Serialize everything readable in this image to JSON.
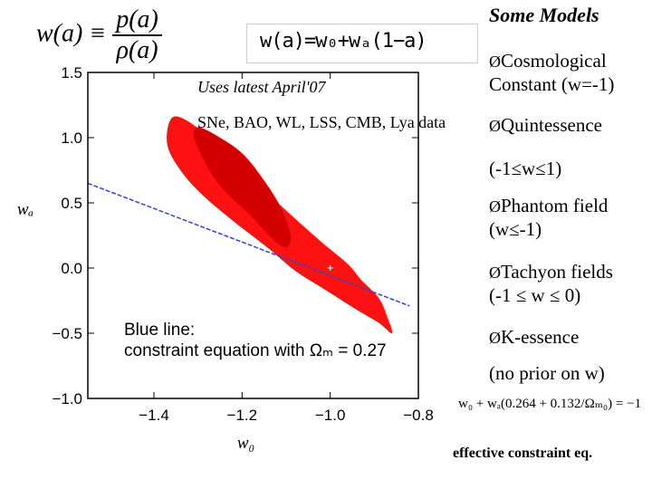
{
  "slide": {
    "definition_lhs": "w(a) ≡",
    "definition_num": "p(a)",
    "definition_den": "ρ(a)",
    "param_box": "w(a)=w₀+wₐ(1−a)",
    "uses_note": "Uses latest April'07",
    "data_note": "SNe, BAO, WL, LSS, CMB, Lya data",
    "models_title": "Some Models",
    "models": [
      {
        "arrow": "Ø",
        "text_1": "Cosmological",
        "text_2": "Constant (w=-1)"
      },
      {
        "arrow": "Ø",
        "text_1": "Quintessence",
        "text_2": "(-1≤w≤1)"
      },
      {
        "arrow": "Ø",
        "text_1": "Phantom field",
        "text_2": "(w≤-1)"
      },
      {
        "arrow": "Ø",
        "text_1": "Tachyon fields",
        "text_2": "(-1 ≤ w ≤ 0)"
      },
      {
        "arrow": "Ø",
        "text_1": "K-essence",
        "text_2": "(no prior on w)"
      }
    ],
    "constraint_equation": "w₀ + wₐ(0.264 + 0.132/Ωₘ₀) = −1",
    "effective_caption": "effective  constraint eq.",
    "blue_note_1": "Blue line:",
    "blue_note_2": "constraint equation with Ωₘ = 0.27"
  },
  "chart_data": {
    "type": "contour",
    "xlabel": "w₀",
    "ylabel": "wₐ",
    "xlim": [
      -1.55,
      -0.8
    ],
    "ylim": [
      -1.0,
      1.5
    ],
    "x_ticks": [
      "−1.4",
      "−1.2",
      "−1.0",
      "−0.8"
    ],
    "y_ticks": [
      "1.5",
      "1.0",
      "0.5",
      "0.0",
      "−0.5",
      "−1.0"
    ],
    "x_tick_values": [
      -1.4,
      -1.2,
      -1.0,
      -0.8
    ],
    "y_tick_values": [
      1.5,
      1.0,
      0.5,
      0.0,
      -0.5,
      -1.0
    ],
    "best_fit": {
      "w0": -1.0,
      "wa": 0.0
    },
    "line": {
      "w0": [
        -1.55,
        -0.82
      ],
      "wa": [
        0.65,
        -0.29
      ],
      "color": "#3344cc"
    },
    "outer_contour": {
      "color": "#ff1111",
      "w0": [
        -1.36,
        -1.37,
        -1.34,
        -1.29,
        -1.22,
        -1.14,
        -1.08,
        -1.01,
        -0.94,
        -0.89,
        -0.86,
        -0.87,
        -0.89,
        -0.93,
        -0.96,
        -1.02,
        -1.09,
        -1.17,
        -1.25,
        -1.32
      ],
      "wa": [
        1.15,
        0.95,
        0.75,
        0.56,
        0.36,
        0.15,
        -0.02,
        -0.17,
        -0.32,
        -0.42,
        -0.5,
        -0.38,
        -0.23,
        -0.09,
        0.03,
        0.2,
        0.41,
        0.66,
        0.92,
        1.12
      ]
    },
    "inner_contour": {
      "color": "#d20000",
      "w0": [
        -1.31,
        -1.29,
        -1.25,
        -1.18,
        -1.13,
        -1.1,
        -1.09,
        -1.11,
        -1.15,
        -1.2,
        -1.26,
        -1.3
      ],
      "wa": [
        1.02,
        0.85,
        0.63,
        0.4,
        0.22,
        0.16,
        0.25,
        0.45,
        0.67,
        0.88,
        1.02,
        1.08
      ]
    },
    "colors": {
      "axis": "#000000",
      "outer": "#ff1111",
      "inner": "#d20000",
      "line": "#3344cc"
    }
  }
}
